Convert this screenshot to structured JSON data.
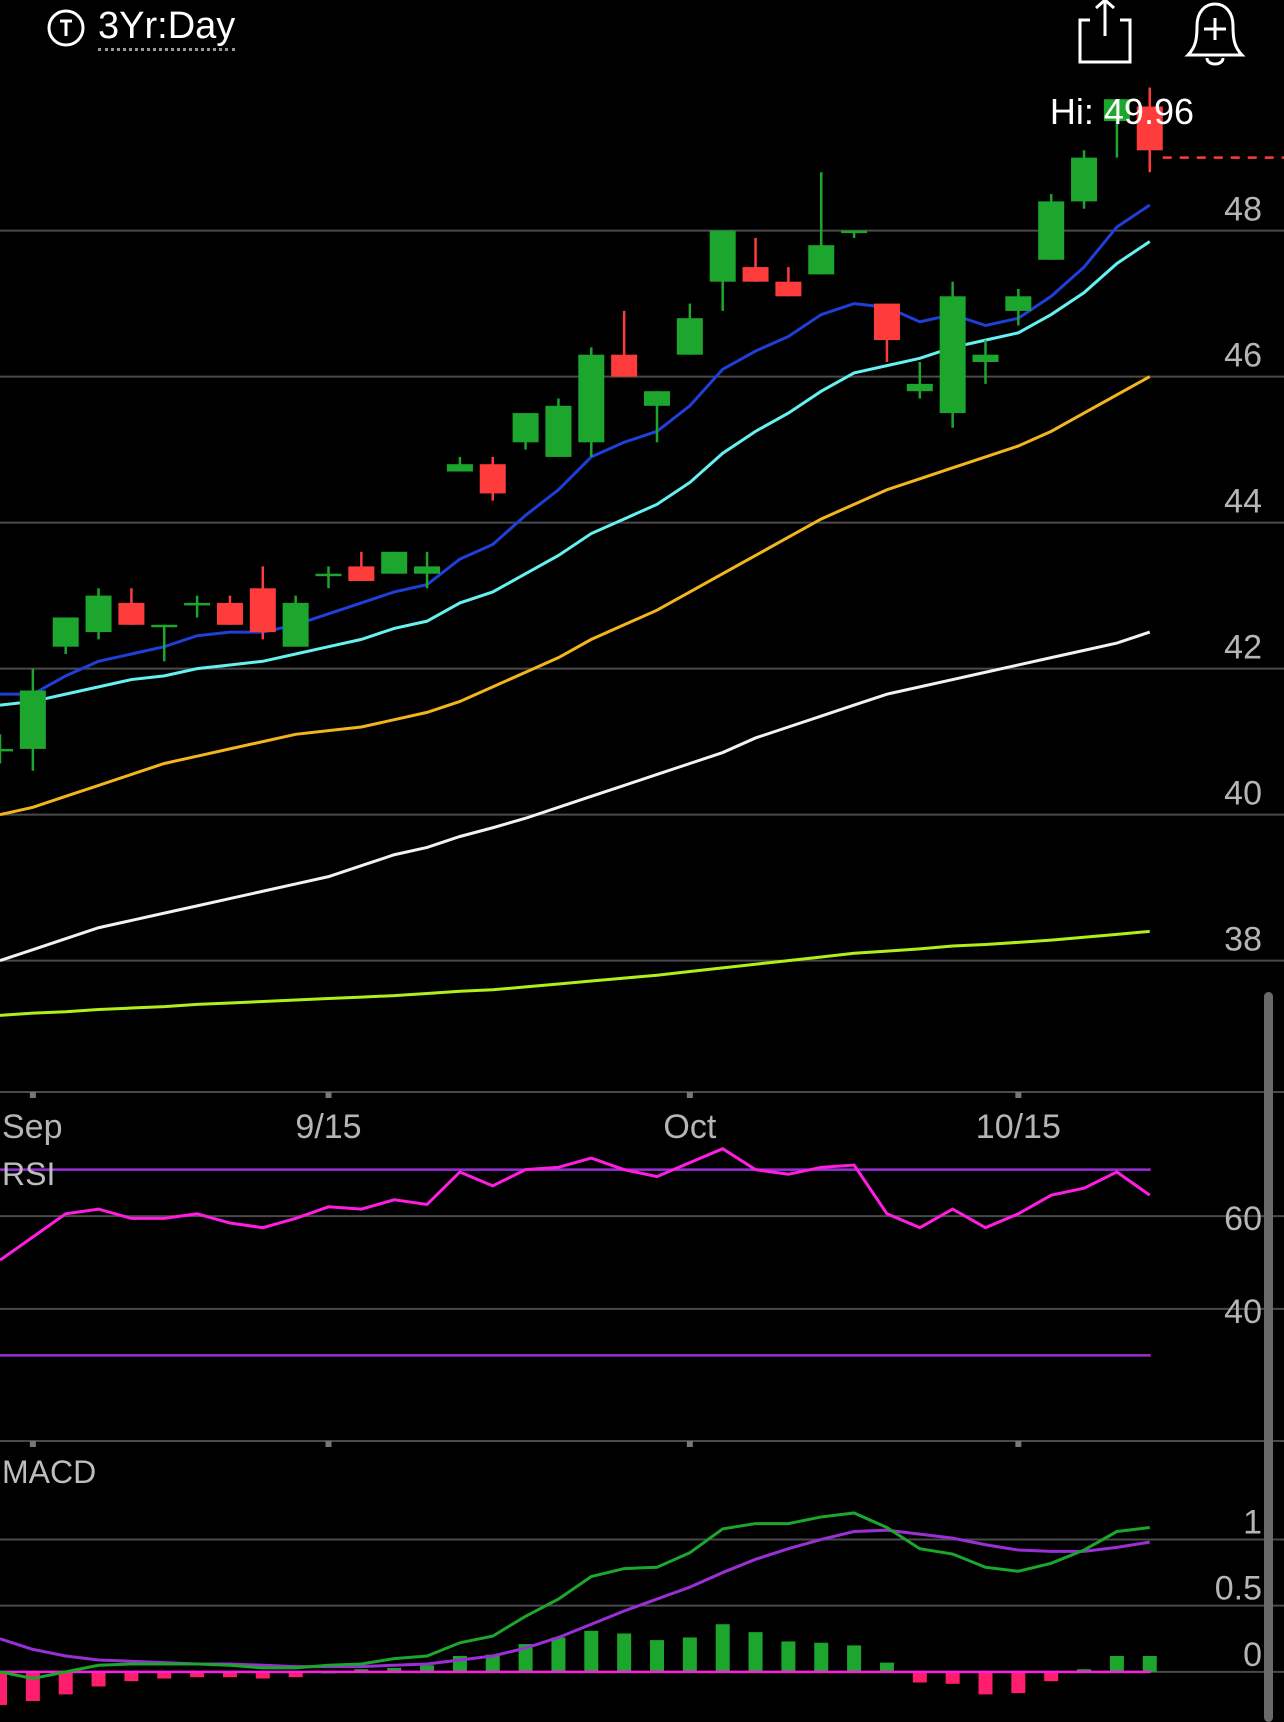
{
  "header": {
    "period_label": "3Yr:Day",
    "period_icon": "stopwatch-icon",
    "share_icon": "share-icon",
    "alert_icon": "add-alert-bell-icon"
  },
  "chart_data": [
    {
      "type": "candlestick",
      "panel": "price",
      "high_label": "Hi: 49.96",
      "y_ticks": [
        48,
        46,
        44,
        42,
        40,
        38
      ],
      "ylim": [
        36.2,
        50.2
      ],
      "x_tick_labels": [
        "Sep",
        "9/15",
        "Oct",
        "10/15"
      ],
      "x_tick_index": [
        1,
        10,
        21,
        31
      ],
      "last_price_line": 49.0,
      "candles": [
        {
          "i": 0,
          "o": 40.9,
          "h": 41.1,
          "l": 40.7,
          "c": 40.9
        },
        {
          "i": 1,
          "o": 40.9,
          "h": 42.0,
          "l": 40.6,
          "c": 41.7
        },
        {
          "i": 2,
          "o": 42.3,
          "h": 42.7,
          "l": 42.2,
          "c": 42.7
        },
        {
          "i": 3,
          "o": 42.5,
          "h": 43.1,
          "l": 42.4,
          "c": 43.0
        },
        {
          "i": 4,
          "o": 42.9,
          "h": 43.1,
          "l": 42.6,
          "c": 42.6
        },
        {
          "i": 5,
          "o": 42.6,
          "h": 42.6,
          "l": 42.1,
          "c": 42.6
        },
        {
          "i": 6,
          "o": 42.9,
          "h": 43.0,
          "l": 42.7,
          "c": 42.9
        },
        {
          "i": 7,
          "o": 42.9,
          "h": 43.0,
          "l": 42.6,
          "c": 42.6
        },
        {
          "i": 8,
          "o": 43.1,
          "h": 43.4,
          "l": 42.4,
          "c": 42.5
        },
        {
          "i": 9,
          "o": 42.3,
          "h": 43.0,
          "l": 42.3,
          "c": 42.9
        },
        {
          "i": 10,
          "o": 43.3,
          "h": 43.4,
          "l": 43.1,
          "c": 43.3
        },
        {
          "i": 11,
          "o": 43.4,
          "h": 43.6,
          "l": 43.2,
          "c": 43.2
        },
        {
          "i": 12,
          "o": 43.3,
          "h": 43.6,
          "l": 43.3,
          "c": 43.6
        },
        {
          "i": 13,
          "o": 43.3,
          "h": 43.6,
          "l": 43.1,
          "c": 43.4
        },
        {
          "i": 14,
          "o": 44.7,
          "h": 44.9,
          "l": 44.7,
          "c": 44.8
        },
        {
          "i": 15,
          "o": 44.8,
          "h": 44.9,
          "l": 44.3,
          "c": 44.4
        },
        {
          "i": 16,
          "o": 45.1,
          "h": 45.5,
          "l": 45.0,
          "c": 45.5
        },
        {
          "i": 17,
          "o": 44.9,
          "h": 45.7,
          "l": 44.9,
          "c": 45.6
        },
        {
          "i": 18,
          "o": 45.1,
          "h": 46.4,
          "l": 44.9,
          "c": 46.3
        },
        {
          "i": 19,
          "o": 46.3,
          "h": 46.9,
          "l": 46.0,
          "c": 46.0
        },
        {
          "i": 20,
          "o": 45.6,
          "h": 45.8,
          "l": 45.1,
          "c": 45.8
        },
        {
          "i": 21,
          "o": 46.3,
          "h": 47.0,
          "l": 46.3,
          "c": 46.8
        },
        {
          "i": 22,
          "o": 47.3,
          "h": 48.0,
          "l": 46.9,
          "c": 48.0
        },
        {
          "i": 23,
          "o": 47.5,
          "h": 47.9,
          "l": 47.3,
          "c": 47.3
        },
        {
          "i": 24,
          "o": 47.3,
          "h": 47.5,
          "l": 47.1,
          "c": 47.1
        },
        {
          "i": 25,
          "o": 47.4,
          "h": 48.8,
          "l": 47.4,
          "c": 47.8
        },
        {
          "i": 26,
          "o": 48.0,
          "h": 48.0,
          "l": 47.9,
          "c": 48.0
        },
        {
          "i": 27,
          "o": 47.0,
          "h": 47.0,
          "l": 46.2,
          "c": 46.5
        },
        {
          "i": 28,
          "o": 45.8,
          "h": 46.2,
          "l": 45.7,
          "c": 45.9
        },
        {
          "i": 29,
          "o": 45.5,
          "h": 47.3,
          "l": 45.3,
          "c": 47.1
        },
        {
          "i": 30,
          "o": 46.2,
          "h": 46.5,
          "l": 45.9,
          "c": 46.3
        },
        {
          "i": 31,
          "o": 46.9,
          "h": 47.2,
          "l": 46.7,
          "c": 47.1
        },
        {
          "i": 32,
          "o": 47.6,
          "h": 48.5,
          "l": 47.6,
          "c": 48.4
        },
        {
          "i": 33,
          "o": 48.4,
          "h": 49.1,
          "l": 48.3,
          "c": 49.0
        },
        {
          "i": 34,
          "o": 49.5,
          "h": 49.8,
          "l": 49.0,
          "c": 49.8
        },
        {
          "i": 35,
          "o": 49.7,
          "h": 49.96,
          "l": 48.8,
          "c": 49.1
        }
      ],
      "moving_averages": [
        {
          "color": "#1f3fd8",
          "values": [
            41.65,
            41.65,
            41.9,
            42.1,
            42.2,
            42.3,
            42.45,
            42.5,
            42.5,
            42.6,
            42.75,
            42.9,
            43.05,
            43.15,
            43.5,
            43.7,
            44.1,
            44.45,
            44.9,
            45.1,
            45.25,
            45.6,
            46.1,
            46.35,
            46.55,
            46.85,
            47.0,
            46.95,
            46.75,
            46.85,
            46.7,
            46.8,
            47.1,
            47.5,
            48.05,
            48.35
          ]
        },
        {
          "color": "#66f0f0",
          "values": [
            41.5,
            41.55,
            41.65,
            41.75,
            41.85,
            41.9,
            42.0,
            42.05,
            42.1,
            42.2,
            42.3,
            42.4,
            42.55,
            42.65,
            42.9,
            43.05,
            43.3,
            43.55,
            43.85,
            44.05,
            44.25,
            44.55,
            44.95,
            45.25,
            45.5,
            45.8,
            46.05,
            46.15,
            46.25,
            46.4,
            46.5,
            46.6,
            46.85,
            47.15,
            47.55,
            47.85
          ]
        },
        {
          "color": "#f2b41f",
          "values": [
            40.0,
            40.1,
            40.25,
            40.4,
            40.55,
            40.7,
            40.8,
            40.9,
            41.0,
            41.1,
            41.15,
            41.2,
            41.3,
            41.4,
            41.55,
            41.75,
            41.95,
            42.15,
            42.4,
            42.6,
            42.8,
            43.05,
            43.3,
            43.55,
            43.8,
            44.05,
            44.25,
            44.45,
            44.6,
            44.75,
            44.9,
            45.05,
            45.25,
            45.5,
            45.75,
            46.0
          ]
        },
        {
          "color": "#f2f2f2",
          "values": [
            38.0,
            38.15,
            38.3,
            38.45,
            38.55,
            38.65,
            38.75,
            38.85,
            38.95,
            39.05,
            39.15,
            39.3,
            39.45,
            39.55,
            39.7,
            39.82,
            39.95,
            40.1,
            40.25,
            40.4,
            40.55,
            40.7,
            40.85,
            41.05,
            41.2,
            41.35,
            41.5,
            41.65,
            41.75,
            41.85,
            41.95,
            42.05,
            42.15,
            42.25,
            42.35,
            42.5
          ]
        },
        {
          "color": "#b0ef1a",
          "values": [
            37.25,
            37.28,
            37.3,
            37.33,
            37.35,
            37.37,
            37.4,
            37.42,
            37.44,
            37.46,
            37.48,
            37.5,
            37.52,
            37.55,
            37.58,
            37.6,
            37.64,
            37.68,
            37.72,
            37.76,
            37.8,
            37.85,
            37.9,
            37.95,
            38.0,
            38.05,
            38.1,
            38.13,
            38.16,
            38.2,
            38.22,
            38.25,
            38.28,
            38.32,
            38.36,
            38.4
          ]
        }
      ]
    },
    {
      "type": "line",
      "panel": "RSI",
      "title": "RSI",
      "y_ticks": [
        60,
        40
      ],
      "ylim": [
        15,
        85
      ],
      "reference_lines": [
        70,
        30
      ],
      "values": [
        50.5,
        55.5,
        60.5,
        61.5,
        59.5,
        59.5,
        60.5,
        58.5,
        57.5,
        59.5,
        62.0,
        61.5,
        63.5,
        62.5,
        69.5,
        66.5,
        70.0,
        70.5,
        72.5,
        70.0,
        68.5,
        71.5,
        74.5,
        70.0,
        69.0,
        70.5,
        71.0,
        60.5,
        57.5,
        61.5,
        57.5,
        60.5,
        64.5,
        66.0,
        69.5,
        64.5
      ]
    },
    {
      "type": "bar+line",
      "panel": "MACD",
      "title": "MACD",
      "y_ticks": [
        1,
        0.5,
        0
      ],
      "ylim": [
        -0.25,
        1.6
      ],
      "macd": [
        0.0,
        -0.05,
        0.0,
        0.05,
        0.06,
        0.06,
        0.06,
        0.05,
        0.03,
        0.03,
        0.05,
        0.06,
        0.1,
        0.12,
        0.22,
        0.27,
        0.42,
        0.55,
        0.72,
        0.78,
        0.79,
        0.9,
        1.08,
        1.12,
        1.12,
        1.17,
        1.2,
        1.09,
        0.93,
        0.89,
        0.79,
        0.76,
        0.82,
        0.92,
        1.06,
        1.09
      ],
      "signal": [
        0.25,
        0.17,
        0.12,
        0.09,
        0.08,
        0.07,
        0.06,
        0.06,
        0.05,
        0.04,
        0.04,
        0.04,
        0.05,
        0.06,
        0.09,
        0.12,
        0.18,
        0.26,
        0.36,
        0.46,
        0.55,
        0.64,
        0.75,
        0.85,
        0.93,
        1.0,
        1.06,
        1.07,
        1.04,
        1.01,
        0.96,
        0.92,
        0.91,
        0.91,
        0.94,
        0.98
      ],
      "histogram": [
        -0.25,
        -0.22,
        -0.17,
        -0.11,
        -0.07,
        -0.05,
        -0.04,
        -0.04,
        -0.05,
        -0.04,
        0.0,
        0.02,
        0.03,
        0.05,
        0.12,
        0.13,
        0.21,
        0.26,
        0.31,
        0.29,
        0.24,
        0.26,
        0.36,
        0.3,
        0.23,
        0.22,
        0.2,
        0.07,
        -0.08,
        -0.09,
        -0.17,
        -0.16,
        -0.07,
        0.02,
        0.12,
        0.12
      ]
    }
  ]
}
